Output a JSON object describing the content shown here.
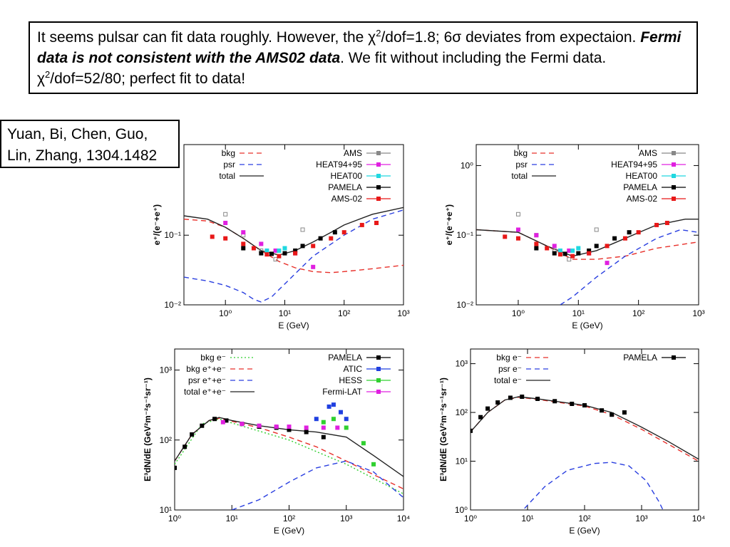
{
  "note": {
    "segments": [
      "It seems pulsar can fit data roughly. However, the χ",
      "2",
      "/dof=1.8; 6σ deviates from expectaion. ",
      "Fermi data is not consistent with the AMS02 data",
      ". We fit without including the Fermi data. χ",
      "2",
      "/dof=52/80; perfect fit to data!"
    ]
  },
  "citation": "Yuan, Bi, Chen, Guo, Lin, Zhang, 1304.1482",
  "chart_data": [
    {
      "type": "line",
      "x_label": "E (GeV)",
      "y_label": "e⁺/(e⁻+e⁺)",
      "log_x": true,
      "log_y": true,
      "xlim": [
        0.2,
        1000
      ],
      "ylim": [
        0.01,
        2
      ],
      "xticks": [
        {
          "value": 1,
          "label": "10⁰"
        },
        {
          "value": 10,
          "label": "10¹"
        },
        {
          "value": 100,
          "label": "10²"
        },
        {
          "value": 1000,
          "label": "10³"
        }
      ],
      "yticks": [
        {
          "value": 0.01,
          "label": "10⁻²"
        },
        {
          "value": 0.1,
          "label": "10⁻¹"
        }
      ],
      "series": [
        {
          "name": "bkg",
          "color": "#e8302a",
          "style": "dashed",
          "x": [
            0.2,
            0.5,
            1,
            2,
            4,
            8,
            15,
            30,
            60,
            100,
            300,
            1000
          ],
          "y": [
            0.17,
            0.16,
            0.13,
            0.09,
            0.06,
            0.042,
            0.034,
            0.03,
            0.029,
            0.03,
            0.033,
            0.037
          ]
        },
        {
          "name": "psr",
          "color": "#2a3fe0",
          "style": "dashed",
          "x": [
            0.2,
            0.5,
            1,
            2,
            3,
            4,
            6,
            10,
            30,
            100,
            300,
            1000
          ],
          "y": [
            0.025,
            0.022,
            0.019,
            0.015,
            0.012,
            0.011,
            0.013,
            0.02,
            0.05,
            0.1,
            0.17,
            0.23
          ]
        },
        {
          "name": "total",
          "color": "#222222",
          "style": "solid",
          "x": [
            0.2,
            0.5,
            1,
            2,
            4,
            8,
            15,
            30,
            60,
            100,
            300,
            1000
          ],
          "y": [
            0.19,
            0.17,
            0.13,
            0.09,
            0.06,
            0.052,
            0.06,
            0.08,
            0.11,
            0.14,
            0.2,
            0.25
          ]
        },
        {
          "name": "AMS",
          "color": "#888888",
          "style": "points",
          "x": [
            1,
            2,
            4,
            7,
            20
          ],
          "y": [
            0.2,
            0.1,
            0.06,
            0.045,
            0.12
          ]
        },
        {
          "name": "HEAT94+95",
          "color": "#e020e0",
          "style": "points",
          "x": [
            1,
            2,
            4,
            7,
            15,
            30
          ],
          "y": [
            0.15,
            0.11,
            0.075,
            0.06,
            0.055,
            0.035
          ]
        },
        {
          "name": "HEAT00",
          "color": "#20d8e0",
          "style": "points",
          "x": [
            5,
            8,
            10
          ],
          "y": [
            0.06,
            0.06,
            0.065
          ]
        },
        {
          "name": "PAMELA",
          "color": "#000000",
          "style": "points",
          "x": [
            2,
            4,
            6,
            10,
            15,
            20,
            40,
            70
          ],
          "y": [
            0.065,
            0.055,
            0.054,
            0.055,
            0.06,
            0.07,
            0.09,
            0.11
          ]
        },
        {
          "name": "AMS-02",
          "color": "#e81818",
          "style": "points",
          "x": [
            0.6,
            1,
            2,
            3,
            5,
            8,
            15,
            30,
            60,
            100,
            200,
            350
          ],
          "y": [
            0.095,
            0.09,
            0.075,
            0.065,
            0.053,
            0.05,
            0.055,
            0.07,
            0.09,
            0.11,
            0.14,
            0.15
          ]
        }
      ]
    },
    {
      "type": "line",
      "x_label": "E (GeV)",
      "y_label": "e⁺/(e⁻+e⁺)",
      "log_x": true,
      "log_y": true,
      "xlim": [
        0.2,
        1000
      ],
      "ylim": [
        0.01,
        2
      ],
      "xticks": [
        {
          "value": 1,
          "label": "10⁰"
        },
        {
          "value": 10,
          "label": "10¹"
        },
        {
          "value": 100,
          "label": "10²"
        },
        {
          "value": 1000,
          "label": "10³"
        }
      ],
      "yticks": [
        {
          "value": 0.01,
          "label": "10⁻²"
        },
        {
          "value": 0.1,
          "label": "10⁻¹"
        },
        {
          "value": 1,
          "label": "10⁰"
        }
      ],
      "series": [
        {
          "name": "bkg",
          "color": "#e8302a",
          "style": "dashed",
          "x": [
            0.2,
            1,
            3,
            8,
            20,
            60,
            200,
            1000
          ],
          "y": [
            0.12,
            0.11,
            0.07,
            0.045,
            0.045,
            0.05,
            0.065,
            0.08
          ]
        },
        {
          "name": "psr",
          "color": "#2a3fe0",
          "style": "dashed",
          "x": [
            5,
            8,
            20,
            60,
            200,
            500,
            1000
          ],
          "y": [
            0.01,
            0.013,
            0.025,
            0.05,
            0.09,
            0.12,
            0.11
          ]
        },
        {
          "name": "total",
          "color": "#222222",
          "style": "solid",
          "x": [
            0.2,
            1,
            3,
            8,
            20,
            60,
            200,
            600,
            1000
          ],
          "y": [
            0.12,
            0.11,
            0.07,
            0.05,
            0.06,
            0.09,
            0.14,
            0.17,
            0.17
          ]
        },
        {
          "name": "AMS",
          "color": "#888888",
          "style": "points",
          "x": [
            1,
            2,
            4,
            7,
            20
          ],
          "y": [
            0.2,
            0.1,
            0.06,
            0.045,
            0.12
          ]
        },
        {
          "name": "HEAT94+95",
          "color": "#e020e0",
          "style": "points",
          "x": [
            1,
            2,
            4,
            7,
            15,
            30
          ],
          "y": [
            0.12,
            0.1,
            0.07,
            0.06,
            0.055,
            0.04
          ]
        },
        {
          "name": "HEAT00",
          "color": "#20d8e0",
          "style": "points",
          "x": [
            5,
            8,
            10
          ],
          "y": [
            0.06,
            0.06,
            0.065
          ]
        },
        {
          "name": "PAMELA",
          "color": "#000000",
          "style": "points",
          "x": [
            2,
            4,
            6,
            10,
            15,
            20,
            40,
            70
          ],
          "y": [
            0.065,
            0.055,
            0.054,
            0.055,
            0.06,
            0.07,
            0.09,
            0.11
          ]
        },
        {
          "name": "AMS-02",
          "color": "#e81818",
          "style": "points",
          "x": [
            0.6,
            1,
            2,
            3,
            5,
            8,
            15,
            30,
            60,
            100,
            200,
            300
          ],
          "y": [
            0.095,
            0.09,
            0.075,
            0.065,
            0.053,
            0.05,
            0.055,
            0.07,
            0.09,
            0.11,
            0.14,
            0.15
          ]
        }
      ]
    },
    {
      "type": "line",
      "x_label": "E (GeV)",
      "y_label": "E³dN/dE (GeV²m⁻²s⁻¹sr⁻¹)",
      "log_x": true,
      "log_y": true,
      "xlim": [
        1,
        10000
      ],
      "ylim": [
        10,
        2000
      ],
      "xticks": [
        {
          "value": 1,
          "label": "10⁰"
        },
        {
          "value": 10,
          "label": "10¹"
        },
        {
          "value": 100,
          "label": "10²"
        },
        {
          "value": 1000,
          "label": "10³"
        },
        {
          "value": 10000,
          "label": "10⁴"
        }
      ],
      "yticks": [
        {
          "value": 10,
          "label": "10¹"
        },
        {
          "value": 100,
          "label": "10²"
        },
        {
          "value": 1000,
          "label": "10³"
        }
      ],
      "series": [
        {
          "name": "bkg e⁻",
          "color": "#30d030",
          "style": "dotted",
          "x": [
            1,
            3,
            6,
            10,
            100,
            1000,
            10000
          ],
          "y": [
            45,
            170,
            200,
            175,
            100,
            45,
            17
          ]
        },
        {
          "name": "bkg e⁺+e⁻",
          "color": "#e8302a",
          "style": "dashed",
          "x": [
            1,
            2,
            4,
            6,
            10,
            30,
            100,
            300,
            1000,
            3000,
            10000
          ],
          "y": [
            50,
            120,
            190,
            205,
            185,
            150,
            110,
            80,
            50,
            32,
            20
          ]
        },
        {
          "name": "psr e⁺+e⁻",
          "color": "#2a3fe0",
          "style": "dashed",
          "x": [
            10,
            30,
            100,
            300,
            1000,
            3000,
            10000
          ],
          "y": [
            10,
            14,
            25,
            40,
            50,
            35,
            15
          ]
        },
        {
          "name": "total e⁺+e⁻",
          "color": "#222222",
          "style": "solid",
          "x": [
            1,
            2,
            4,
            6,
            10,
            30,
            100,
            300,
            1000,
            3000,
            10000
          ],
          "y": [
            50,
            120,
            190,
            210,
            190,
            160,
            140,
            130,
            110,
            60,
            30
          ]
        },
        {
          "name": "PAMELA",
          "color": "#000000",
          "style": "points",
          "x": [
            1,
            1.5,
            2,
            3,
            5,
            8,
            15,
            30,
            60,
            100,
            200,
            400
          ],
          "y": [
            40,
            80,
            120,
            160,
            200,
            190,
            170,
            155,
            150,
            140,
            130,
            110
          ]
        },
        {
          "name": "ATIC",
          "color": "#2040e0",
          "style": "points",
          "x": [
            300,
            500,
            600,
            800,
            1000
          ],
          "y": [
            200,
            300,
            320,
            250,
            200
          ]
        },
        {
          "name": "HESS",
          "color": "#30d030",
          "style": "points",
          "x": [
            400,
            600,
            1000,
            2000,
            3000
          ],
          "y": [
            180,
            200,
            150,
            90,
            45
          ]
        },
        {
          "name": "Fermi-LAT",
          "color": "#e020e0",
          "style": "points",
          "x": [
            7,
            15,
            30,
            60,
            100,
            200,
            400,
            700
          ],
          "y": [
            180,
            170,
            160,
            155,
            155,
            150,
            150,
            150
          ]
        }
      ]
    },
    {
      "type": "line",
      "x_label": "E (GeV)",
      "y_label": "E³dN/dE (GeV²m⁻²s⁻¹sr⁻¹)",
      "log_x": true,
      "log_y": true,
      "xlim": [
        1,
        10000
      ],
      "ylim": [
        1,
        2000
      ],
      "xticks": [
        {
          "value": 1,
          "label": "10⁰"
        },
        {
          "value": 10,
          "label": "10¹"
        },
        {
          "value": 100,
          "label": "10²"
        },
        {
          "value": 1000,
          "label": "10³"
        },
        {
          "value": 10000,
          "label": "10⁴"
        }
      ],
      "yticks": [
        {
          "value": 1,
          "label": "10⁰"
        },
        {
          "value": 10,
          "label": "10¹"
        },
        {
          "value": 100,
          "label": "10²"
        },
        {
          "value": 1000,
          "label": "10³"
        }
      ],
      "series": [
        {
          "name": "bkg e⁻",
          "color": "#e8302a",
          "style": "dashed",
          "x": [
            1,
            2,
            4,
            7,
            15,
            30,
            100,
            300,
            1000,
            3000,
            10000
          ],
          "y": [
            40,
            100,
            180,
            205,
            185,
            165,
            135,
            90,
            45,
            22,
            10
          ]
        },
        {
          "name": "psr e⁻",
          "color": "#2a3fe0",
          "style": "dashed",
          "x": [
            7,
            20,
            50,
            150,
            300,
            600,
            1200,
            2000,
            2600
          ],
          "y": [
            0.8,
            3,
            6.5,
            9,
            9.5,
            8,
            4,
            1.5,
            0.8
          ]
        },
        {
          "name": "total e⁻",
          "color": "#222222",
          "style": "solid",
          "x": [
            1,
            2,
            4,
            7,
            15,
            30,
            100,
            300,
            1000,
            3000,
            10000
          ],
          "y": [
            40,
            100,
            180,
            210,
            190,
            170,
            140,
            100,
            50,
            25,
            11
          ]
        },
        {
          "name": "PAMELA",
          "color": "#000000",
          "style": "points",
          "x": [
            1,
            1.5,
            2,
            3,
            5,
            8,
            15,
            30,
            60,
            100,
            200,
            300,
            500
          ],
          "y": [
            42,
            80,
            120,
            160,
            200,
            210,
            190,
            170,
            150,
            140,
            110,
            90,
            100
          ]
        }
      ]
    }
  ]
}
